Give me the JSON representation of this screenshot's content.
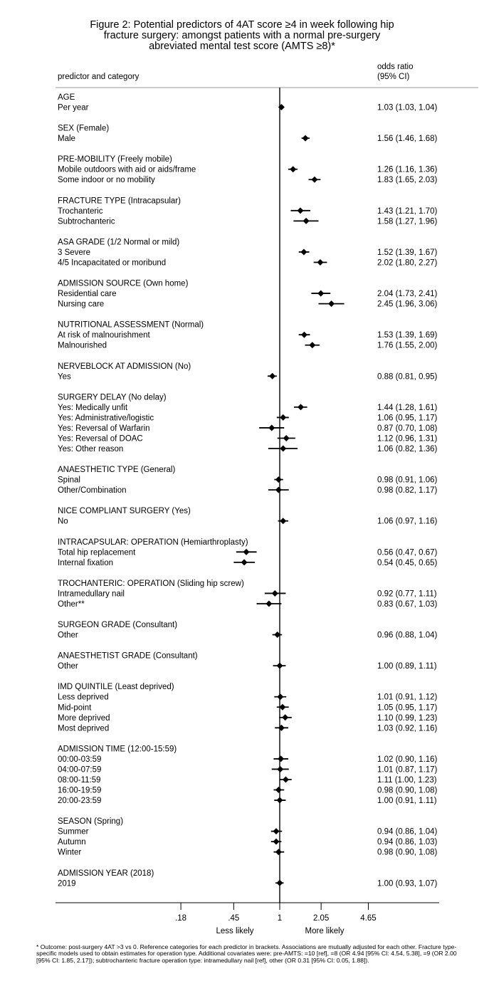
{
  "title_lines": [
    "Figure 2: Potential predictors of 4AT score ≥4 in week following hip",
    "fracture surgery: amongst patients with a normal pre-surgery",
    "abreviated mental test score (AMTS ≥8)*"
  ],
  "chart_data": {
    "type": "forest",
    "scale": "log",
    "reference_value": 1,
    "header_left": "predictor and category",
    "header_right": [
      "odds ratio",
      "(95% CI)"
    ],
    "x_ticks": [
      0.18,
      0.45,
      1,
      2.05,
      4.65
    ],
    "x_tick_labels": [
      ".18",
      ".45",
      "1",
      "2.05",
      "4.65"
    ],
    "x_label_left": "Less likely",
    "x_label_right": "More likely",
    "groups": [
      {
        "heading": "AGE",
        "items": [
          {
            "label": "Per year",
            "or": 1.03,
            "lo": 1.03,
            "hi": 1.04,
            "text": "1.03 (1.03, 1.04)"
          }
        ]
      },
      {
        "heading": "SEX (Female)",
        "items": [
          {
            "label": "Male",
            "or": 1.56,
            "lo": 1.46,
            "hi": 1.68,
            "text": "1.56 (1.46, 1.68)"
          }
        ]
      },
      {
        "heading": "PRE-MOBILITY (Freely mobile)",
        "items": [
          {
            "label": "Mobile outdoors with aid or aids/frame",
            "or": 1.26,
            "lo": 1.16,
            "hi": 1.36,
            "text": "1.26 (1.16, 1.36)"
          },
          {
            "label": "Some indoor or no mobility",
            "or": 1.83,
            "lo": 1.65,
            "hi": 2.03,
            "text": "1.83 (1.65, 2.03)"
          }
        ]
      },
      {
        "heading": "FRACTURE TYPE (Intracapsular)",
        "items": [
          {
            "label": "Trochanteric",
            "or": 1.43,
            "lo": 1.21,
            "hi": 1.7,
            "text": "1.43 (1.21, 1.70)"
          },
          {
            "label": "Subtrochanteric",
            "or": 1.58,
            "lo": 1.27,
            "hi": 1.96,
            "text": "1.58 (1.27, 1.96)"
          }
        ]
      },
      {
        "heading": "ASA GRADE (1/2 Normal or mild)",
        "items": [
          {
            "label": "3 Severe",
            "or": 1.52,
            "lo": 1.39,
            "hi": 1.67,
            "text": "1.52 (1.39, 1.67)"
          },
          {
            "label": "4/5 Incapacitated or moribund",
            "or": 2.02,
            "lo": 1.8,
            "hi": 2.27,
            "text": "2.02 (1.80, 2.27)"
          }
        ]
      },
      {
        "heading": "ADMISSION SOURCE (Own home)",
        "items": [
          {
            "label": "Residential care",
            "or": 2.04,
            "lo": 1.73,
            "hi": 2.41,
            "text": "2.04 (1.73, 2.41)"
          },
          {
            "label": "Nursing care",
            "or": 2.45,
            "lo": 1.96,
            "hi": 3.06,
            "text": "2.45 (1.96, 3.06)"
          }
        ]
      },
      {
        "heading": "NUTRITIONAL ASSESSMENT (Normal)",
        "items": [
          {
            "label": "At risk of malnourishment",
            "or": 1.53,
            "lo": 1.39,
            "hi": 1.69,
            "text": "1.53 (1.39, 1.69)"
          },
          {
            "label": "Malnourished",
            "or": 1.76,
            "lo": 1.55,
            "hi": 2.0,
            "text": "1.76 (1.55, 2.00)"
          }
        ]
      },
      {
        "heading": "NERVEBLOCK AT ADMISSION (No)",
        "items": [
          {
            "label": "Yes",
            "or": 0.88,
            "lo": 0.81,
            "hi": 0.95,
            "text": "0.88 (0.81, 0.95)"
          }
        ]
      },
      {
        "heading": "SURGERY DELAY (No delay)",
        "items": [
          {
            "label": "Yes: Medically unfit",
            "or": 1.44,
            "lo": 1.28,
            "hi": 1.61,
            "text": "1.44 (1.28, 1.61)"
          },
          {
            "label": "Yes: Administrative/logistic",
            "or": 1.06,
            "lo": 0.95,
            "hi": 1.17,
            "text": "1.06 (0.95, 1.17)"
          },
          {
            "label": "Yes: Reversal of Warfarin",
            "or": 0.87,
            "lo": 0.7,
            "hi": 1.08,
            "text": "0.87 (0.70, 1.08)"
          },
          {
            "label": "Yes: Reversal of DOAC",
            "or": 1.12,
            "lo": 0.96,
            "hi": 1.31,
            "text": "1.12 (0.96, 1.31)"
          },
          {
            "label": "Yes: Other reason",
            "or": 1.06,
            "lo": 0.82,
            "hi": 1.36,
            "text": "1.06 (0.82, 1.36)"
          }
        ]
      },
      {
        "heading": "ANAESTHETIC TYPE (General)",
        "items": [
          {
            "label": "Spinal",
            "or": 0.98,
            "lo": 0.91,
            "hi": 1.06,
            "text": "0.98 (0.91, 1.06)"
          },
          {
            "label": "Other/Combination",
            "or": 0.98,
            "lo": 0.82,
            "hi": 1.17,
            "text": "0.98 (0.82, 1.17)"
          }
        ]
      },
      {
        "heading": "NICE COMPLIANT SURGERY (Yes)",
        "items": [
          {
            "label": "No",
            "or": 1.06,
            "lo": 0.97,
            "hi": 1.16,
            "text": "1.06 (0.97, 1.16)"
          }
        ]
      },
      {
        "heading": "INTRACAPSULAR: OPERATION (Hemiarthroplasty)",
        "items": [
          {
            "label": "Total hip replacement",
            "or": 0.56,
            "lo": 0.47,
            "hi": 0.67,
            "text": "0.56 (0.47, 0.67)"
          },
          {
            "label": "Internal fixation",
            "or": 0.54,
            "lo": 0.45,
            "hi": 0.65,
            "text": "0.54 (0.45, 0.65)"
          }
        ]
      },
      {
        "heading": "TROCHANTERIC: OPERATION (Sliding hip screw)",
        "items": [
          {
            "label": "Intramedullary nail",
            "or": 0.92,
            "lo": 0.77,
            "hi": 1.11,
            "text": "0.92 (0.77, 1.11)"
          },
          {
            "label": "Other**",
            "or": 0.83,
            "lo": 0.67,
            "hi": 1.03,
            "text": "0.83 (0.67, 1.03)"
          }
        ]
      },
      {
        "heading": "SURGEON GRADE (Consultant)",
        "items": [
          {
            "label": "Other",
            "or": 0.96,
            "lo": 0.88,
            "hi": 1.04,
            "text": "0.96 (0.88, 1.04)"
          }
        ]
      },
      {
        "heading": "ANAESTHETIST GRADE (Consultant)",
        "items": [
          {
            "label": "Other",
            "or": 1.0,
            "lo": 0.89,
            "hi": 1.11,
            "text": "1.00 (0.89, 1.11)"
          }
        ]
      },
      {
        "heading": "IMD QUINTILE (Least deprived)",
        "items": [
          {
            "label": "Less deprived",
            "or": 1.01,
            "lo": 0.91,
            "hi": 1.12,
            "text": "1.01 (0.91, 1.12)"
          },
          {
            "label": "Mid-point",
            "or": 1.05,
            "lo": 0.95,
            "hi": 1.17,
            "text": "1.05 (0.95, 1.17)"
          },
          {
            "label": "More deprived",
            "or": 1.1,
            "lo": 0.99,
            "hi": 1.23,
            "text": "1.10 (0.99, 1.23)"
          },
          {
            "label": "Most deprived",
            "or": 1.03,
            "lo": 0.92,
            "hi": 1.16,
            "text": "1.03 (0.92, 1.16)"
          }
        ]
      },
      {
        "heading": "ADMISSION TIME (12:00-15:59)",
        "items": [
          {
            "label": "00:00-03:59",
            "or": 1.02,
            "lo": 0.9,
            "hi": 1.16,
            "text": "1.02 (0.90, 1.16)"
          },
          {
            "label": "04:00-07:59",
            "or": 1.01,
            "lo": 0.87,
            "hi": 1.17,
            "text": "1.01 (0.87, 1.17)"
          },
          {
            "label": "08:00-11:59",
            "or": 1.11,
            "lo": 1.0,
            "hi": 1.23,
            "text": "1.11 (1.00, 1.23)"
          },
          {
            "label": "16:00-19:59",
            "or": 0.98,
            "lo": 0.9,
            "hi": 1.08,
            "text": "0.98 (0.90, 1.08)"
          },
          {
            "label": "20:00-23:59",
            "or": 1.0,
            "lo": 0.91,
            "hi": 1.11,
            "text": "1.00 (0.91, 1.11)"
          }
        ]
      },
      {
        "heading": "SEASON (Spring)",
        "items": [
          {
            "label": "Summer",
            "or": 0.94,
            "lo": 0.86,
            "hi": 1.04,
            "text": "0.94 (0.86, 1.04)"
          },
          {
            "label": "Autumn",
            "or": 0.94,
            "lo": 0.86,
            "hi": 1.03,
            "text": "0.94 (0.86, 1.03)"
          },
          {
            "label": "Winter",
            "or": 0.98,
            "lo": 0.9,
            "hi": 1.08,
            "text": "0.98 (0.90, 1.08)"
          }
        ]
      },
      {
        "heading": "ADMISSION YEAR (2018)",
        "items": [
          {
            "label": "2019",
            "or": 1.0,
            "lo": 0.93,
            "hi": 1.07,
            "text": "1.00 (0.93, 1.07)"
          }
        ]
      }
    ]
  },
  "footnote": "* Outcome: post-surgery 4AT >3 vs 0. Reference categories for each predictor in brackets. Associations are mutually adjusted for each other. Fracture type-specific models used to obtain estimates for operation type. Additional covariates were: pre-AMTS: =10 [ref], =8 (OR 4.94 [95% CI: 4.54, 5.38], =9 (OR 2.00 [95% CI: 1.85, 2.17]); subtrochanteric fracture operation type: intramedullary nail [ref], other (OR 0.31 [95% CI: 0.05, 1.88])."
}
